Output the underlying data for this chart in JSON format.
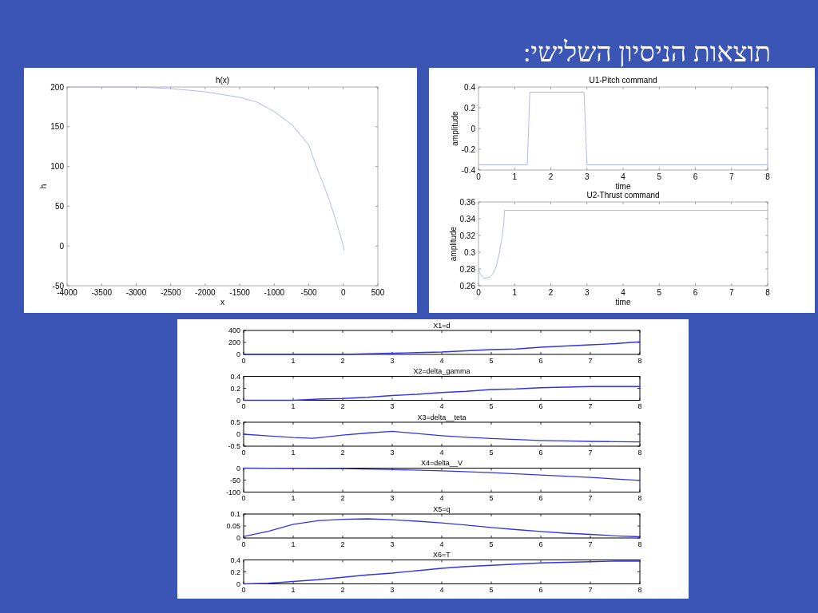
{
  "chart_data": [
    {
      "type": "other",
      "title": "תוצאות הניסיון השלישי:"
    },
    {
      "type": "line",
      "title": "h(x)",
      "xlabel": "x",
      "ylabel": "h",
      "color": "#a9b1ee",
      "x": [
        -4000,
        -3500,
        -3000,
        -2500,
        -2000,
        -1500,
        -1250,
        -1000,
        -750,
        -500,
        -400,
        -300,
        -200,
        -100,
        0,
        10
      ],
      "values": [
        200,
        200,
        200,
        198,
        194,
        187,
        181,
        169,
        153,
        127,
        102,
        80,
        57,
        30,
        0,
        -5
      ],
      "xlim": [
        -4000,
        500
      ],
      "ylim": [
        -50,
        200
      ],
      "xticks": [
        -4000,
        -3500,
        -3000,
        -2500,
        -2000,
        -1500,
        -1000,
        -500,
        0,
        500
      ],
      "yticks": [
        -50,
        0,
        50,
        100,
        150,
        200
      ]
    },
    {
      "type": "line",
      "title": "U1-Pitch command",
      "xlabel": "time",
      "ylabel": "amplitude",
      "color": "#a9b1ee",
      "x": [
        0,
        1.35,
        1.42,
        2.92,
        3.0,
        8
      ],
      "values": [
        -0.35,
        -0.35,
        0.35,
        0.35,
        -0.35,
        -0.35
      ],
      "xlim": [
        0,
        8
      ],
      "ylim": [
        -0.4,
        0.4
      ],
      "xticks": [
        0,
        1,
        2,
        3,
        4,
        5,
        6,
        7,
        8
      ],
      "yticks": [
        -0.4,
        -0.2,
        0,
        0.2,
        0.4
      ]
    },
    {
      "type": "line",
      "title": "U2-Thrust command",
      "xlabel": "time",
      "ylabel": "amplitude",
      "color": "#a9b1ee",
      "x": [
        0,
        0.05,
        0.15,
        0.3,
        0.4,
        0.5,
        0.57,
        0.65,
        0.7,
        0.72,
        8
      ],
      "values": [
        0.28,
        0.274,
        0.269,
        0.27,
        0.274,
        0.284,
        0.298,
        0.317,
        0.335,
        0.35,
        0.35
      ],
      "xlim": [
        0,
        8
      ],
      "ylim": [
        0.26,
        0.36
      ],
      "xticks": [
        0,
        1,
        2,
        3,
        4,
        5,
        6,
        7,
        8
      ],
      "yticks": [
        0.26,
        0.28,
        0.3,
        0.32,
        0.34,
        0.36
      ]
    },
    {
      "type": "line",
      "title": "X1=d",
      "color": "#3434e6",
      "x": [
        0,
        1,
        2,
        2.5,
        3,
        3.5,
        4,
        4.5,
        5,
        5.5,
        6,
        6.5,
        7,
        7.5,
        8
      ],
      "values": [
        0,
        0,
        0,
        10,
        20,
        30,
        40,
        60,
        80,
        90,
        120,
        140,
        160,
        180,
        210
      ],
      "xlim": [
        0,
        8
      ],
      "ylim": [
        0,
        400
      ],
      "xticks": [
        0,
        1,
        2,
        3,
        4,
        5,
        6,
        7,
        8
      ],
      "yticks": [
        0,
        200,
        400
      ]
    },
    {
      "type": "line",
      "title": "X2=delta_gamma",
      "color": "#3434e6",
      "x": [
        0,
        0.5,
        1,
        1.5,
        2,
        2.5,
        3,
        3.5,
        4,
        4.5,
        5,
        5.5,
        6,
        6.5,
        7,
        7.5,
        8
      ],
      "values": [
        0,
        0,
        0,
        0.02,
        0.03,
        0.05,
        0.08,
        0.1,
        0.13,
        0.15,
        0.18,
        0.19,
        0.21,
        0.22,
        0.23,
        0.23,
        0.23
      ],
      "xlim": [
        0,
        8
      ],
      "ylim": [
        0,
        0.4
      ],
      "xticks": [
        0,
        1,
        2,
        3,
        4,
        5,
        6,
        7,
        8
      ],
      "yticks": [
        0,
        0.2,
        0.4
      ]
    },
    {
      "type": "line",
      "title": "X3=delta__teta",
      "color": "#3434e6",
      "x": [
        0,
        0.5,
        1,
        1.4,
        2,
        2.5,
        3,
        3.5,
        4,
        4.5,
        5,
        5.5,
        6,
        6.5,
        7,
        7.5,
        8
      ],
      "values": [
        0,
        -0.07,
        -0.14,
        -0.17,
        -0.04,
        0.05,
        0.12,
        0.03,
        -0.06,
        -0.13,
        -0.18,
        -0.22,
        -0.26,
        -0.28,
        -0.3,
        -0.31,
        -0.32
      ],
      "xlim": [
        0,
        8
      ],
      "ylim": [
        -0.5,
        0.5
      ],
      "xticks": [
        0,
        1,
        2,
        3,
        4,
        5,
        6,
        7,
        8
      ],
      "yticks": [
        -0.5,
        0,
        0.5
      ]
    },
    {
      "type": "line",
      "title": "X4=delta__V",
      "color": "#3434e6",
      "x": [
        0,
        1,
        2,
        3,
        4,
        5,
        6,
        7,
        8
      ],
      "values": [
        0,
        -1,
        -2,
        -6,
        -11,
        -19,
        -29,
        -39,
        -51
      ],
      "xlim": [
        0,
        8
      ],
      "ylim": [
        -100,
        0
      ],
      "xticks": [
        0,
        1,
        2,
        3,
        4,
        5,
        6,
        7,
        8
      ],
      "yticks": [
        -100,
        -50,
        0
      ]
    },
    {
      "type": "line",
      "title": "X5=q",
      "color": "#3434e6",
      "x": [
        0,
        0.5,
        1,
        1.5,
        2,
        2.5,
        3,
        3.5,
        4,
        4.5,
        5,
        5.5,
        6,
        6.5,
        7,
        7.5,
        8
      ],
      "values": [
        0.006,
        0.028,
        0.057,
        0.072,
        0.078,
        0.08,
        0.076,
        0.07,
        0.063,
        0.054,
        0.044,
        0.035,
        0.027,
        0.02,
        0.015,
        0.009,
        0.005
      ],
      "xlim": [
        0,
        8
      ],
      "ylim": [
        0,
        0.1
      ],
      "xticks": [
        0,
        1,
        2,
        3,
        4,
        5,
        6,
        7,
        8
      ],
      "yticks": [
        0,
        0.05,
        0.1
      ]
    },
    {
      "type": "line",
      "title": "X6=T",
      "color": "#3434e6",
      "x": [
        0,
        0.5,
        1,
        1.5,
        2,
        2.5,
        3,
        3.5,
        4,
        4.5,
        5,
        5.5,
        6,
        6.5,
        7,
        7.5,
        8
      ],
      "values": [
        0,
        0.01,
        0.04,
        0.07,
        0.11,
        0.15,
        0.18,
        0.22,
        0.26,
        0.29,
        0.31,
        0.33,
        0.35,
        0.36,
        0.37,
        0.38,
        0.38
      ],
      "xlim": [
        0,
        8
      ],
      "ylim": [
        0,
        0.4
      ],
      "xticks": [
        0,
        1,
        2,
        3,
        4,
        5,
        6,
        7,
        8
      ],
      "yticks": [
        0,
        0.2,
        0.4
      ]
    }
  ]
}
